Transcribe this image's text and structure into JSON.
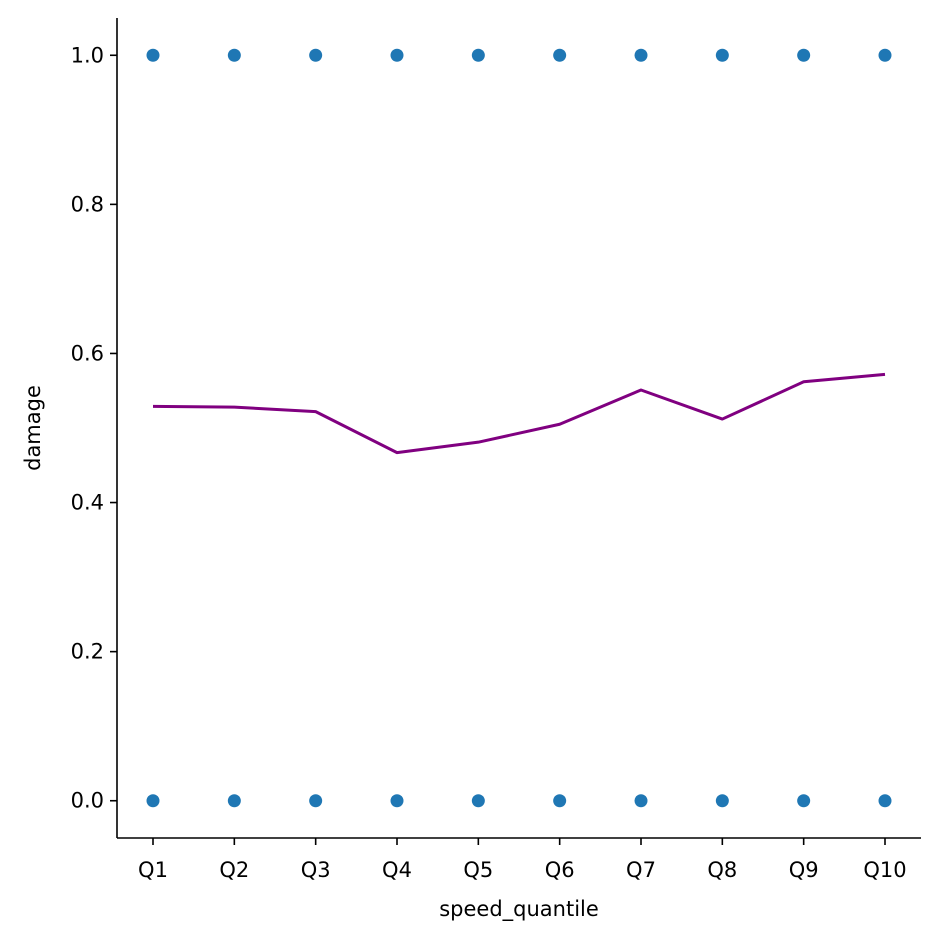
{
  "chart_data": {
    "type": "scatter",
    "xlabel": "speed_quantile",
    "ylabel": "damage",
    "categories": [
      "Q1",
      "Q2",
      "Q3",
      "Q4",
      "Q5",
      "Q6",
      "Q7",
      "Q8",
      "Q9",
      "Q10"
    ],
    "ylim": [
      -0.05,
      1.05
    ],
    "yticks": [
      0.0,
      0.2,
      0.4,
      0.6,
      0.8,
      1.0
    ],
    "ytick_labels": [
      "0.0",
      "0.2",
      "0.4",
      "0.6",
      "0.8",
      "1.0"
    ],
    "grid": false,
    "series": [
      {
        "kind": "scatter",
        "color": "#1f77b4",
        "points": [
          {
            "x": "Q1",
            "y": 1.0
          },
          {
            "x": "Q2",
            "y": 1.0
          },
          {
            "x": "Q3",
            "y": 1.0
          },
          {
            "x": "Q4",
            "y": 1.0
          },
          {
            "x": "Q5",
            "y": 1.0
          },
          {
            "x": "Q6",
            "y": 1.0
          },
          {
            "x": "Q7",
            "y": 1.0
          },
          {
            "x": "Q8",
            "y": 1.0
          },
          {
            "x": "Q9",
            "y": 1.0
          },
          {
            "x": "Q10",
            "y": 1.0
          },
          {
            "x": "Q1",
            "y": 0.0
          },
          {
            "x": "Q2",
            "y": 0.0
          },
          {
            "x": "Q3",
            "y": 0.0
          },
          {
            "x": "Q4",
            "y": 0.0
          },
          {
            "x": "Q5",
            "y": 0.0
          },
          {
            "x": "Q6",
            "y": 0.0
          },
          {
            "x": "Q7",
            "y": 0.0
          },
          {
            "x": "Q8",
            "y": 0.0
          },
          {
            "x": "Q9",
            "y": 0.0
          },
          {
            "x": "Q10",
            "y": 0.0
          }
        ]
      },
      {
        "kind": "line",
        "color": "#800080",
        "values": [
          0.529,
          0.528,
          0.522,
          0.467,
          0.481,
          0.505,
          0.551,
          0.512,
          0.562,
          0.572
        ]
      }
    ]
  }
}
